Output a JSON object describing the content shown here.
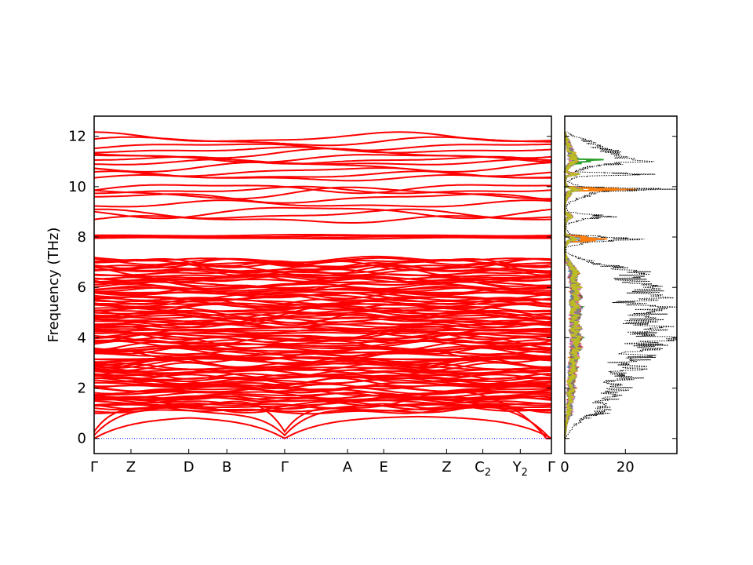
{
  "chart_data": [
    {
      "type": "line",
      "title": "",
      "xlabel": "",
      "ylabel": "Frequency (THz)",
      "ylim": [
        -0.6,
        12.8
      ],
      "yticks": [
        0,
        2,
        4,
        6,
        8,
        10,
        12
      ],
      "high_symmetry_points": [
        {
          "label": "Γ",
          "sub": "",
          "x": 0.0
        },
        {
          "label": "Z",
          "sub": "",
          "x": 0.58
        },
        {
          "label": "D",
          "sub": "",
          "x": 1.49
        },
        {
          "label": "B",
          "sub": "",
          "x": 2.09
        },
        {
          "label": "Γ",
          "sub": "",
          "x": 3.0
        },
        {
          "label": "A",
          "sub": "",
          "x": 3.99
        },
        {
          "label": "E",
          "sub": "",
          "x": 4.56
        },
        {
          "label": "Z",
          "sub": "",
          "x": 5.55
        },
        {
          "label": "C",
          "sub": "2",
          "x": 6.12
        },
        {
          "label": "Y",
          "sub": "2",
          "x": 6.71
        },
        {
          "label": "Γ",
          "sub": "",
          "x": 7.2
        }
      ],
      "band_color": "#ff0000",
      "zero_line_color": "#0000ff",
      "grid": false,
      "legend": "none"
    },
    {
      "type": "line",
      "title": "",
      "xlabel": "",
      "ylabel": "",
      "xlim": [
        0,
        37
      ],
      "ylim": [
        -0.6,
        12.8
      ],
      "xticks": [
        0,
        20
      ],
      "total_dos_color": "#000000",
      "pdos_colors": [
        "#1f77b4",
        "#ff7f0e",
        "#2ca02c",
        "#d62728",
        "#9467bd",
        "#8c564b",
        "#e377c2",
        "#7f7f7f",
        "#bcbd22"
      ],
      "total_dos": {
        "freq": [
          0,
          0.3,
          0.6,
          0.9,
          1.0,
          1.2,
          1.4,
          1.6,
          1.8,
          2.0,
          2.2,
          2.4,
          2.6,
          2.8,
          3.0,
          3.2,
          3.4,
          3.6,
          3.8,
          4.0,
          4.2,
          4.4,
          4.6,
          4.8,
          5.0,
          5.2,
          5.4,
          5.6,
          5.8,
          6.0,
          6.2,
          6.4,
          6.6,
          6.8,
          7.0,
          7.2,
          7.4,
          7.6,
          7.8,
          7.9,
          8.0,
          8.1,
          8.3,
          8.5,
          8.7,
          8.8,
          8.9,
          9.0,
          9.2,
          9.4,
          9.6,
          9.8,
          9.9,
          10.0,
          10.2,
          10.4,
          10.5,
          10.6,
          10.8,
          11.0,
          11.2,
          11.4,
          11.6,
          11.8,
          12.0,
          12.2
        ],
        "dos": [
          0,
          2,
          4,
          9,
          13,
          14,
          12,
          18,
          16,
          20,
          15,
          22,
          18,
          25,
          19,
          28,
          24,
          33,
          27,
          35,
          26,
          32,
          25,
          30,
          28,
          34,
          22,
          33,
          27,
          30,
          25,
          22,
          26,
          18,
          10,
          4,
          0.5,
          0.5,
          8,
          25,
          15,
          2,
          0.5,
          0.5,
          6,
          15,
          9,
          1,
          0.5,
          2,
          7,
          12,
          36,
          5,
          1,
          4,
          30,
          3,
          10,
          26,
          22,
          16,
          11,
          8,
          3,
          0.5
        ]
      }
    }
  ]
}
